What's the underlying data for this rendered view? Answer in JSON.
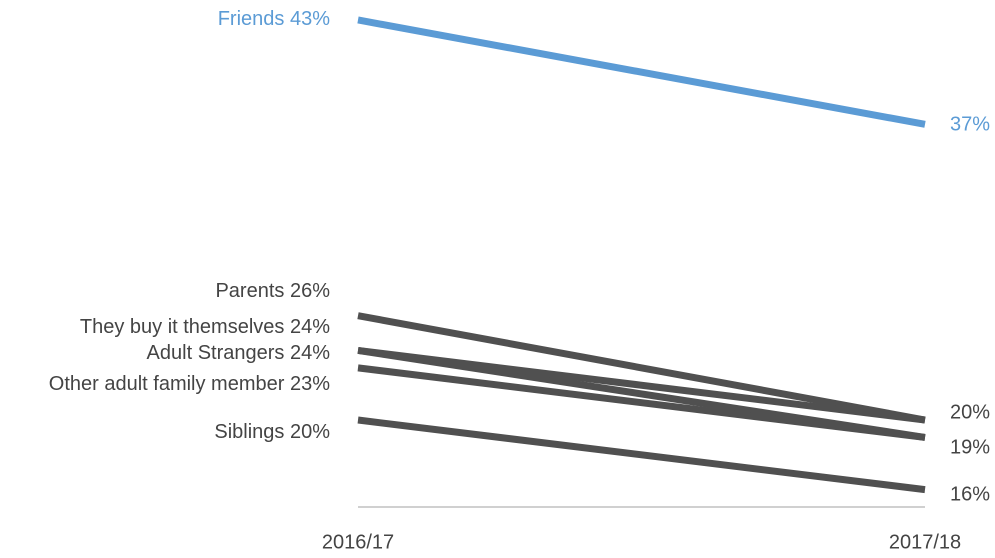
{
  "chart_data": {
    "type": "line",
    "categories": [
      "2016/17",
      "2017/18"
    ],
    "ylim": [
      15,
      44
    ],
    "series": [
      {
        "name": "Friends",
        "color": "#5b9bd5",
        "values": [
          43,
          37
        ],
        "value_labels": [
          "43%",
          "37%"
        ]
      },
      {
        "name": "Parents",
        "color": "#505050",
        "values": [
          26,
          20
        ],
        "value_labels": [
          "26%",
          "20%"
        ]
      },
      {
        "name": "They buy it themselves",
        "color": "#505050",
        "values": [
          24,
          19
        ],
        "value_labels": [
          "24%",
          null
        ]
      },
      {
        "name": "Adult Strangers",
        "color": "#505050",
        "values": [
          24,
          20
        ],
        "value_labels": [
          "24%",
          null
        ]
      },
      {
        "name": "Other adult family member",
        "color": "#505050",
        "values": [
          23,
          19
        ],
        "value_labels": [
          "23%",
          "19%"
        ]
      },
      {
        "name": "Siblings",
        "color": "#505050",
        "values": [
          20,
          16
        ],
        "value_labels": [
          "20%",
          "16%"
        ]
      }
    ]
  }
}
